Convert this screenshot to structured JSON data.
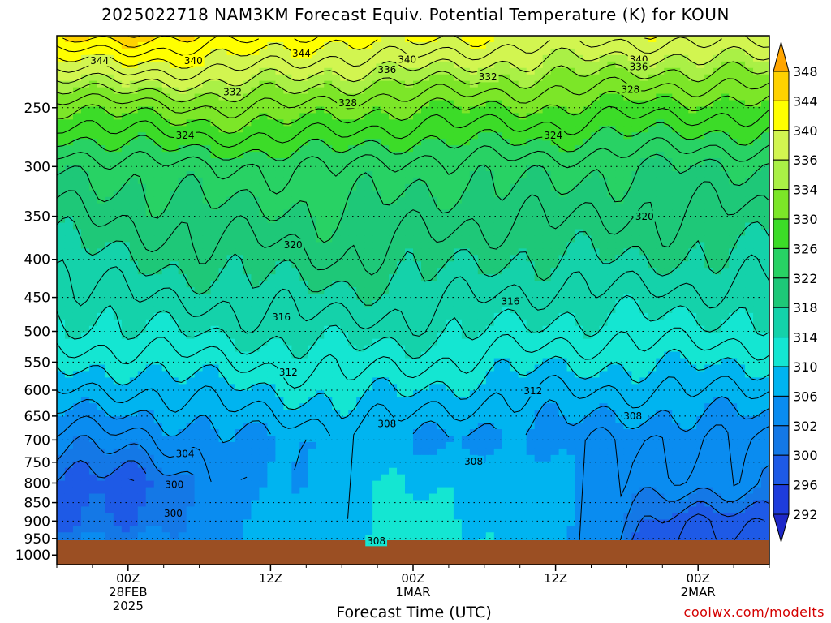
{
  "title": "2025022718 NAM3KM Forecast Equiv. Potential Temperature (K) for KOUN",
  "credit": "coolwx.com/modelts",
  "chart_data": {
    "type": "heatmap",
    "title": "2025022718 NAM3KM Forecast Equiv. Potential Temperature (K) for KOUN",
    "xlabel": "Forecast Time (UTC)",
    "ylabel": "",
    "y_axis": {
      "scale": "log-pressure",
      "ticks": [
        250,
        300,
        350,
        400,
        450,
        500,
        550,
        600,
        650,
        700,
        750,
        800,
        850,
        900,
        950,
        1000
      ],
      "range_hPa": [
        200,
        1030
      ]
    },
    "x_axis": {
      "range_hours_from_init": [
        0,
        60
      ],
      "ticks": [
        {
          "hour": 6,
          "lines": [
            "00Z",
            "28FEB",
            "2025"
          ]
        },
        {
          "hour": 18,
          "lines": [
            "12Z"
          ]
        },
        {
          "hour": 30,
          "lines": [
            "00Z",
            "1MAR"
          ]
        },
        {
          "hour": 42,
          "lines": [
            "12Z"
          ]
        },
        {
          "hour": 54,
          "lines": [
            "00Z",
            "2MAR"
          ]
        }
      ]
    },
    "colorbar": {
      "units": "K",
      "labels": [
        348,
        344,
        340,
        336,
        334,
        330,
        326,
        322,
        318,
        314,
        310,
        306,
        302,
        300,
        296,
        292
      ],
      "colors": [
        "#ffa500",
        "#ffd200",
        "#ffff00",
        "#d2f550",
        "#aaf046",
        "#7ce628",
        "#3cdc28",
        "#28d264",
        "#1ec878",
        "#14d2aa",
        "#14e6d2",
        "#00b4f0",
        "#0a8cf0",
        "#1478e6",
        "#1e5ae6",
        "#1e3cdc"
      ],
      "below_color": "#1e28c8"
    },
    "surface_color": "#9b4f23",
    "grid": true,
    "gridlines_on": "pressure ticks 250-950 (dotted)",
    "thetae_profiles": [
      {
        "hour": 0,
        "values": [
          [
            200,
            345
          ],
          [
            250,
            330
          ],
          [
            300,
            322
          ],
          [
            400,
            317
          ],
          [
            500,
            313
          ],
          [
            600,
            308
          ],
          [
            700,
            303
          ],
          [
            800,
            299
          ],
          [
            900,
            299
          ],
          [
            1000,
            303
          ]
        ]
      },
      {
        "hour": 6,
        "values": [
          [
            200,
            345
          ],
          [
            250,
            331
          ],
          [
            300,
            323
          ],
          [
            400,
            318
          ],
          [
            500,
            314
          ],
          [
            600,
            308
          ],
          [
            700,
            303
          ],
          [
            800,
            299
          ],
          [
            900,
            300
          ],
          [
            1000,
            303
          ]
        ]
      },
      {
        "hour": 12,
        "values": [
          [
            200,
            344
          ],
          [
            250,
            332
          ],
          [
            300,
            324
          ],
          [
            400,
            319
          ],
          [
            500,
            314
          ],
          [
            600,
            309
          ],
          [
            700,
            305
          ],
          [
            800,
            302
          ],
          [
            900,
            304
          ],
          [
            1000,
            305
          ]
        ]
      },
      {
        "hour": 18,
        "values": [
          [
            200,
            342
          ],
          [
            250,
            332
          ],
          [
            300,
            324
          ],
          [
            400,
            319
          ],
          [
            500,
            315
          ],
          [
            600,
            310
          ],
          [
            700,
            306
          ],
          [
            800,
            306
          ],
          [
            900,
            307
          ],
          [
            1000,
            308
          ]
        ]
      },
      {
        "hour": 24,
        "values": [
          [
            200,
            341
          ],
          [
            250,
            331
          ],
          [
            300,
            324
          ],
          [
            400,
            320
          ],
          [
            500,
            315
          ],
          [
            600,
            311
          ],
          [
            700,
            307
          ],
          [
            800,
            309
          ],
          [
            900,
            309
          ],
          [
            1000,
            310
          ]
        ]
      },
      {
        "hour": 30,
        "values": [
          [
            200,
            341
          ],
          [
            250,
            330
          ],
          [
            300,
            323
          ],
          [
            400,
            319
          ],
          [
            500,
            315
          ],
          [
            600,
            310
          ],
          [
            700,
            306
          ],
          [
            800,
            310
          ],
          [
            900,
            311
          ],
          [
            1000,
            311
          ]
        ]
      },
      {
        "hour": 36,
        "values": [
          [
            200,
            340
          ],
          [
            250,
            330
          ],
          [
            300,
            323
          ],
          [
            400,
            318
          ],
          [
            500,
            314
          ],
          [
            600,
            309
          ],
          [
            700,
            305
          ],
          [
            800,
            309
          ],
          [
            900,
            310
          ],
          [
            1000,
            310
          ]
        ]
      },
      {
        "hour": 42,
        "values": [
          [
            200,
            339
          ],
          [
            250,
            330
          ],
          [
            300,
            323
          ],
          [
            400,
            318
          ],
          [
            500,
            313
          ],
          [
            600,
            308
          ],
          [
            700,
            305
          ],
          [
            800,
            307
          ],
          [
            900,
            307
          ],
          [
            1000,
            306
          ]
        ]
      },
      {
        "hour": 48,
        "values": [
          [
            200,
            339
          ],
          [
            250,
            329
          ],
          [
            300,
            322
          ],
          [
            400,
            318
          ],
          [
            500,
            313
          ],
          [
            600,
            308
          ],
          [
            700,
            304
          ],
          [
            800,
            304
          ],
          [
            900,
            302
          ],
          [
            1000,
            300
          ]
        ]
      },
      {
        "hour": 54,
        "values": [
          [
            200,
            339
          ],
          [
            250,
            329
          ],
          [
            300,
            322
          ],
          [
            400,
            318
          ],
          [
            500,
            313
          ],
          [
            600,
            308
          ],
          [
            700,
            304
          ],
          [
            800,
            303
          ],
          [
            900,
            298
          ],
          [
            1000,
            297
          ]
        ]
      },
      {
        "hour": 60,
        "values": [
          [
            200,
            339
          ],
          [
            250,
            329
          ],
          [
            300,
            322
          ],
          [
            400,
            317
          ],
          [
            500,
            313
          ],
          [
            600,
            308
          ],
          [
            700,
            304
          ],
          [
            800,
            303
          ],
          [
            900,
            298
          ],
          [
            1000,
            297
          ]
        ]
      }
    ],
    "contour_labels": [
      {
        "text": "344",
        "hour": 3.6,
        "p": 216
      },
      {
        "text": "340",
        "hour": 11.5,
        "p": 216
      },
      {
        "text": "344",
        "hour": 20.6,
        "p": 211
      },
      {
        "text": "340",
        "hour": 29.5,
        "p": 215
      },
      {
        "text": "336",
        "hour": 27.8,
        "p": 222
      },
      {
        "text": "332",
        "hour": 36.3,
        "p": 227
      },
      {
        "text": "340",
        "hour": 49.0,
        "p": 215
      },
      {
        "text": "336",
        "hour": 49.0,
        "p": 220
      },
      {
        "text": "332",
        "hour": 14.8,
        "p": 238
      },
      {
        "text": "328",
        "hour": 24.5,
        "p": 246
      },
      {
        "text": "328",
        "hour": 48.3,
        "p": 236
      },
      {
        "text": "324",
        "hour": 10.8,
        "p": 272
      },
      {
        "text": "324",
        "hour": 41.8,
        "p": 272
      },
      {
        "text": "320",
        "hour": 49.5,
        "p": 350
      },
      {
        "text": "320",
        "hour": 19.9,
        "p": 382
      },
      {
        "text": "316",
        "hour": 38.2,
        "p": 455
      },
      {
        "text": "316",
        "hour": 18.9,
        "p": 478
      },
      {
        "text": "312",
        "hour": 19.5,
        "p": 567
      },
      {
        "text": "312",
        "hour": 40.1,
        "p": 601
      },
      {
        "text": "308",
        "hour": 27.8,
        "p": 665
      },
      {
        "text": "308",
        "hour": 48.5,
        "p": 649
      },
      {
        "text": "308",
        "hour": 35.1,
        "p": 748
      },
      {
        "text": "304",
        "hour": 10.8,
        "p": 730
      },
      {
        "text": "300",
        "hour": 9.9,
        "p": 803
      },
      {
        "text": "300",
        "hour": 9.8,
        "p": 878
      },
      {
        "text": "308",
        "hour": 26.9,
        "p": 956
      }
    ]
  }
}
